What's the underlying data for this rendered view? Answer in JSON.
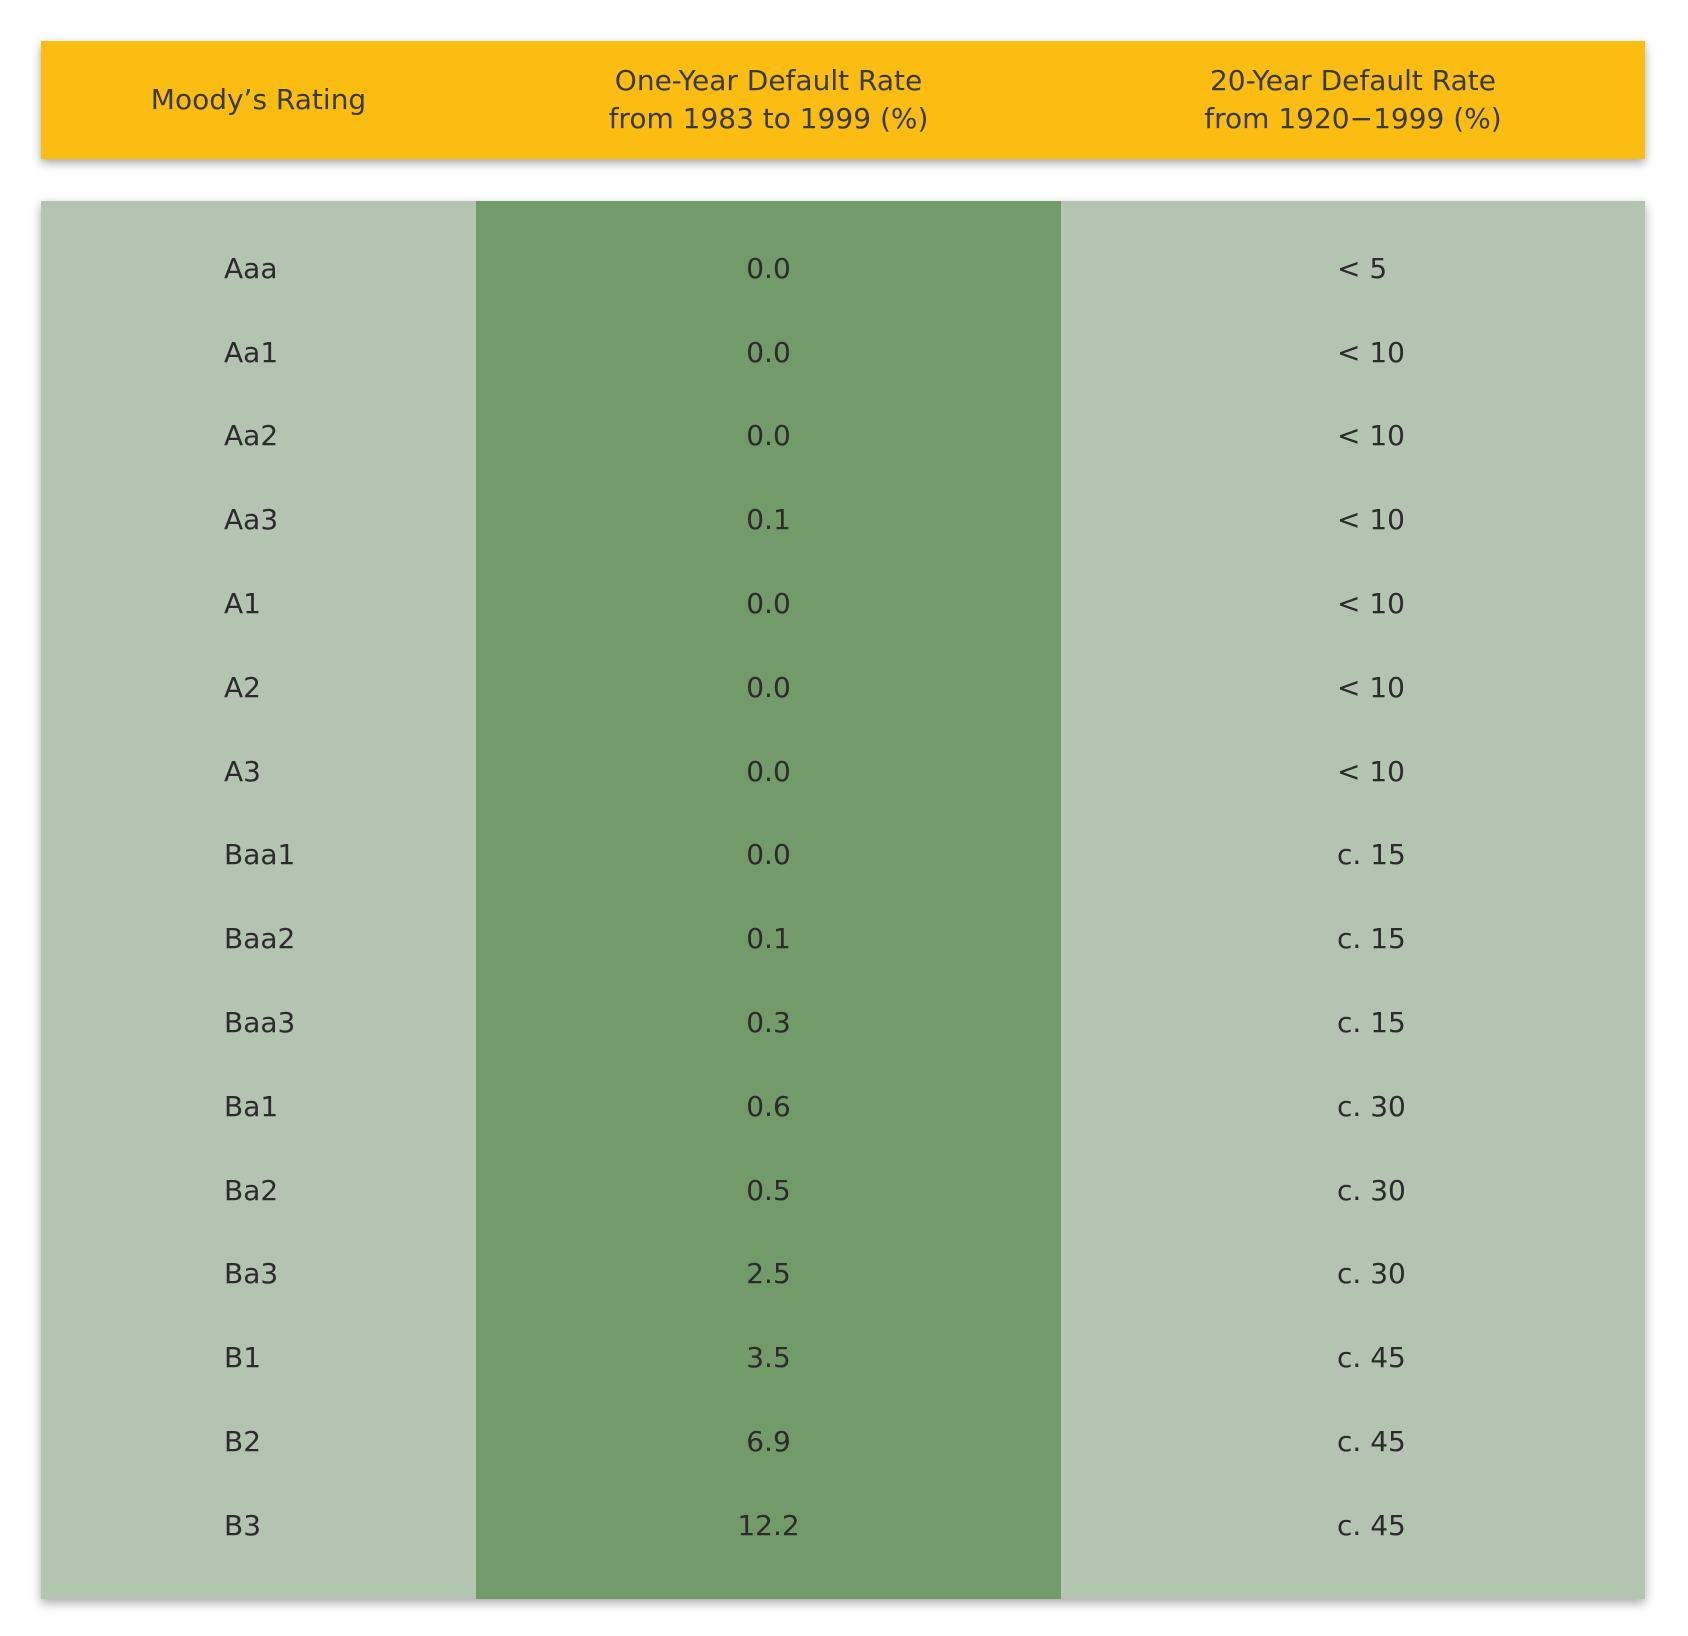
{
  "table": {
    "headers": [
      "Moody’s Rating",
      "One-Year Default Rate\nfrom 1983 to 1999 (%)",
      "20-Year Default Rate\nfrom 1920−1999 (%)"
    ],
    "rows": [
      {
        "rating": "Aaa",
        "one_year": "0.0",
        "twenty_year": "< 5"
      },
      {
        "rating": "Aa1",
        "one_year": "0.0",
        "twenty_year": "< 10"
      },
      {
        "rating": "Aa2",
        "one_year": "0.0",
        "twenty_year": "< 10"
      },
      {
        "rating": "Aa3",
        "one_year": "0.1",
        "twenty_year": "< 10"
      },
      {
        "rating": "A1",
        "one_year": "0.0",
        "twenty_year": "< 10"
      },
      {
        "rating": "A2",
        "one_year": "0.0",
        "twenty_year": "< 10"
      },
      {
        "rating": "A3",
        "one_year": "0.0",
        "twenty_year": "< 10"
      },
      {
        "rating": "Baa1",
        "one_year": "0.0",
        "twenty_year": "c. 15"
      },
      {
        "rating": "Baa2",
        "one_year": "0.1",
        "twenty_year": "c. 15"
      },
      {
        "rating": "Baa3",
        "one_year": "0.3",
        "twenty_year": "c. 15"
      },
      {
        "rating": "Ba1",
        "one_year": "0.6",
        "twenty_year": "c. 30"
      },
      {
        "rating": "Ba2",
        "one_year": "0.5",
        "twenty_year": "c. 30"
      },
      {
        "rating": "Ba3",
        "one_year": "2.5",
        "twenty_year": "c. 30"
      },
      {
        "rating": "B1",
        "one_year": "3.5",
        "twenty_year": "c. 45"
      },
      {
        "rating": "B2",
        "one_year": "6.9",
        "twenty_year": "c. 45"
      },
      {
        "rating": "B3",
        "one_year": "12.2",
        "twenty_year": "c. 45"
      }
    ]
  },
  "colors": {
    "header_bg": "#fbbd12",
    "body_bg": "#b3c5b0",
    "highlight_column_bg": "#739b69"
  }
}
